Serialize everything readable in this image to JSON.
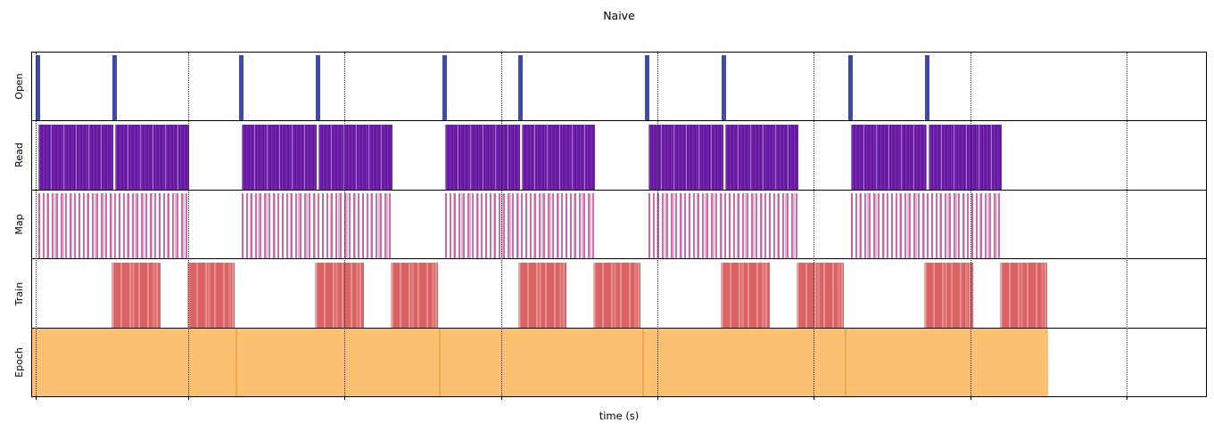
{
  "chart_data": {
    "type": "timeline",
    "title": "Naive",
    "xlabel": "time (s)",
    "x_axis": {
      "tick_labels_visible": false,
      "gridline_positions_pct": [
        0.3,
        13.29,
        26.61,
        39.94,
        53.26,
        66.59,
        79.92,
        93.24
      ]
    },
    "layout": {
      "grid": "dotted-vertical",
      "legend": "none",
      "row_border": "black"
    },
    "rows": [
      {
        "key": "open",
        "label": "Open",
        "color": "#3f4ca6",
        "intervals_pct": [
          [
            0.3,
            0.68
          ],
          [
            6.83,
            7.21
          ],
          [
            17.61,
            17.99
          ],
          [
            24.14,
            24.52
          ],
          [
            34.92,
            35.3
          ],
          [
            41.45,
            41.83
          ],
          [
            52.24,
            52.62
          ],
          [
            58.77,
            59.15
          ],
          [
            69.55,
            69.93
          ],
          [
            76.08,
            76.46
          ]
        ]
      },
      {
        "key": "read",
        "label": "Read",
        "color": "#7222ac",
        "intervals_pct": [
          [
            0.53,
            6.95
          ],
          [
            7.1,
            13.36
          ],
          [
            17.84,
            24.26
          ],
          [
            24.41,
            30.67
          ],
          [
            35.15,
            41.57
          ],
          [
            41.72,
            47.98
          ],
          [
            52.47,
            58.89
          ],
          [
            59.04,
            65.3
          ],
          [
            69.78,
            76.2
          ],
          [
            76.35,
            82.61
          ]
        ]
      },
      {
        "key": "map",
        "label": "Map",
        "color": "#c858a0",
        "intervals_pct": [
          [
            0.53,
            13.36
          ],
          [
            17.84,
            30.67
          ],
          [
            35.15,
            47.98
          ],
          [
            52.47,
            65.3
          ],
          [
            69.78,
            82.61
          ]
        ]
      },
      {
        "key": "train",
        "label": "Train",
        "color": "#dc6363",
        "intervals_pct": [
          [
            6.76,
            10.93
          ],
          [
            13.21,
            17.24
          ],
          [
            24.07,
            28.24
          ],
          [
            30.52,
            34.55
          ],
          [
            41.38,
            45.55
          ],
          [
            47.83,
            51.86
          ],
          [
            58.7,
            62.87
          ],
          [
            65.15,
            69.18
          ],
          [
            76.01,
            80.18
          ],
          [
            82.46,
            86.49
          ]
        ]
      },
      {
        "key": "epoch",
        "label": "Epoch",
        "color": "#fbc171",
        "edge_color": "#f2a74e",
        "intervals_pct": [
          [
            0.0,
            17.31
          ],
          [
            17.31,
            34.62
          ],
          [
            34.62,
            51.94
          ],
          [
            51.94,
            69.25
          ],
          [
            69.25,
            86.56
          ]
        ]
      }
    ]
  }
}
